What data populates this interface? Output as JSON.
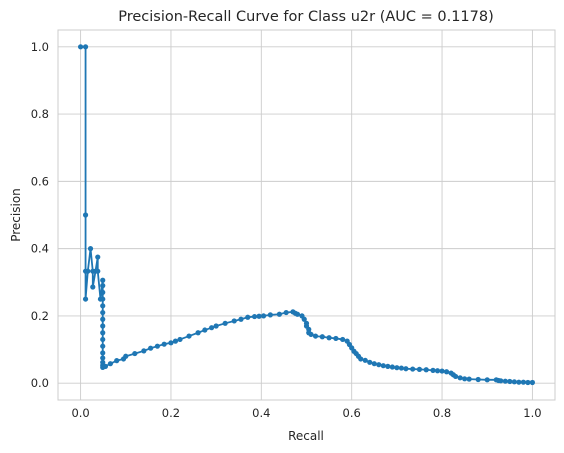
{
  "chart_data": {
    "type": "line",
    "title": "Precision-Recall Curve for Class u2r (AUC = 0.1178)",
    "xlabel": "Recall",
    "ylabel": "Precision",
    "xlim": [
      -0.05,
      1.05
    ],
    "ylim": [
      -0.05,
      1.05
    ],
    "xticks": [
      "0.0",
      "0.2",
      "0.4",
      "0.6",
      "0.8",
      "1.0"
    ],
    "yticks": [
      "0.0",
      "0.2",
      "0.4",
      "0.6",
      "0.8",
      "1.0"
    ],
    "grid": true,
    "marker": "dot",
    "color": "#1f77b4",
    "series": [
      {
        "x": [
          0.0,
          0.011,
          0.011,
          0.011,
          0.011,
          0.016,
          0.022,
          0.027,
          0.027,
          0.033,
          0.038,
          0.038,
          0.044,
          0.049,
          0.049,
          0.049,
          0.049,
          0.049,
          0.049,
          0.049,
          0.049,
          0.049,
          0.049,
          0.049,
          0.049,
          0.049,
          0.049,
          0.049,
          0.049,
          0.055,
          0.066,
          0.08,
          0.095,
          0.1,
          0.12,
          0.14,
          0.155,
          0.17,
          0.185,
          0.2,
          0.21,
          0.22,
          0.24,
          0.26,
          0.275,
          0.29,
          0.3,
          0.32,
          0.34,
          0.355,
          0.37,
          0.385,
          0.395,
          0.405,
          0.42,
          0.44,
          0.455,
          0.47,
          0.475,
          0.48,
          0.49,
          0.495,
          0.5,
          0.5,
          0.505,
          0.505,
          0.51,
          0.52,
          0.535,
          0.55,
          0.565,
          0.58,
          0.59,
          0.595,
          0.6,
          0.605,
          0.61,
          0.615,
          0.62,
          0.63,
          0.64,
          0.65,
          0.66,
          0.67,
          0.68,
          0.69,
          0.7,
          0.71,
          0.72,
          0.735,
          0.75,
          0.765,
          0.78,
          0.79,
          0.8,
          0.81,
          0.82,
          0.825,
          0.83,
          0.84,
          0.85,
          0.86,
          0.88,
          0.9,
          0.92,
          0.925,
          0.93,
          0.94,
          0.95,
          0.96,
          0.97,
          0.98,
          0.99,
          1.0
        ],
        "y": [
          1.0,
          1.0,
          0.5,
          0.333,
          0.25,
          0.333,
          0.4,
          0.333,
          0.286,
          0.333,
          0.375,
          0.333,
          0.25,
          0.306,
          0.29,
          0.27,
          0.25,
          0.23,
          0.21,
          0.19,
          0.17,
          0.15,
          0.13,
          0.11,
          0.09,
          0.075,
          0.062,
          0.053,
          0.047,
          0.05,
          0.058,
          0.067,
          0.072,
          0.08,
          0.088,
          0.096,
          0.104,
          0.11,
          0.116,
          0.12,
          0.125,
          0.13,
          0.14,
          0.15,
          0.158,
          0.165,
          0.17,
          0.178,
          0.185,
          0.19,
          0.196,
          0.198,
          0.199,
          0.2,
          0.203,
          0.205,
          0.21,
          0.212,
          0.208,
          0.205,
          0.2,
          0.19,
          0.178,
          0.17,
          0.16,
          0.15,
          0.145,
          0.14,
          0.138,
          0.135,
          0.133,
          0.13,
          0.125,
          0.115,
          0.105,
          0.095,
          0.088,
          0.08,
          0.072,
          0.068,
          0.062,
          0.058,
          0.055,
          0.052,
          0.05,
          0.048,
          0.046,
          0.045,
          0.043,
          0.042,
          0.041,
          0.04,
          0.038,
          0.037,
          0.036,
          0.034,
          0.03,
          0.025,
          0.02,
          0.016,
          0.013,
          0.012,
          0.011,
          0.01,
          0.01,
          0.008,
          0.007,
          0.006,
          0.005,
          0.004,
          0.003,
          0.003,
          0.002,
          0.002
        ]
      }
    ]
  }
}
